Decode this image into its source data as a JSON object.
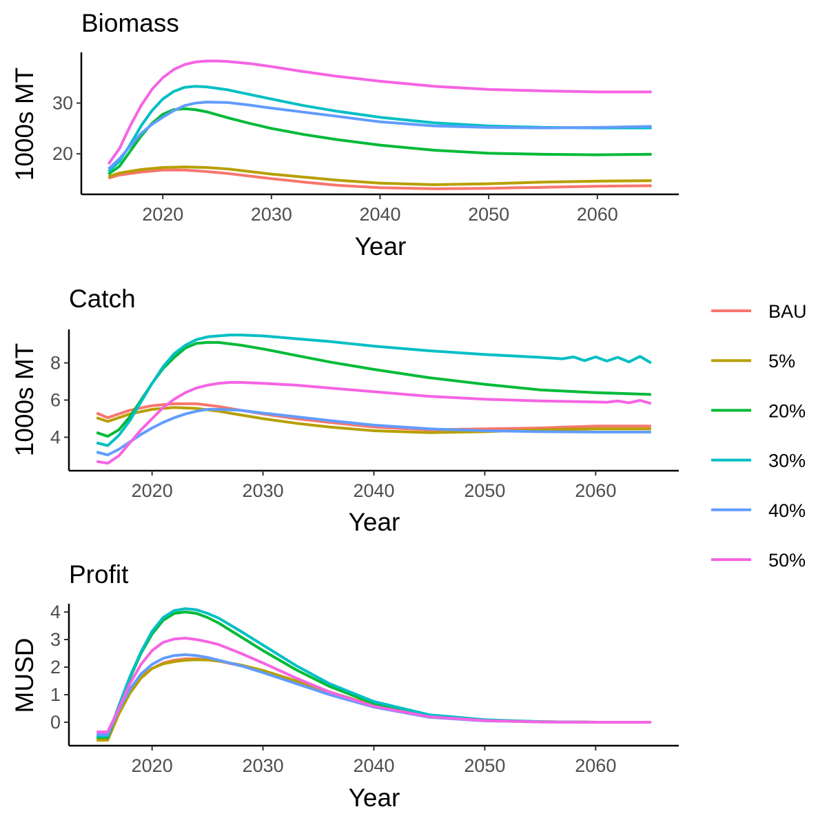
{
  "chart_data": [
    {
      "type": "line",
      "title": "Biomass",
      "xlabel": "Year",
      "ylabel": "1000s MT",
      "xlim": [
        2012.5,
        2067.5
      ],
      "ylim": [
        12.0,
        40.0
      ],
      "xticks": [
        2020,
        2030,
        2040,
        2050,
        2060
      ],
      "yticks": [
        20,
        30
      ],
      "grid": false,
      "series": [
        {
          "name": "BAU",
          "color": "#F8766D",
          "x": [
            2015,
            2016,
            2018,
            2020,
            2022,
            2024,
            2026,
            2028,
            2030,
            2033,
            2036,
            2040,
            2045,
            2050,
            2055,
            2060,
            2065
          ],
          "y": [
            15.2,
            15.8,
            16.4,
            16.8,
            16.8,
            16.5,
            16.1,
            15.6,
            15.1,
            14.4,
            13.8,
            13.3,
            13.1,
            13.2,
            13.4,
            13.6,
            13.7
          ]
        },
        {
          "name": "5%",
          "color": "#B79F00",
          "x": [
            2015,
            2016,
            2018,
            2020,
            2022,
            2024,
            2026,
            2028,
            2030,
            2033,
            2036,
            2040,
            2045,
            2050,
            2055,
            2060,
            2065
          ],
          "y": [
            15.5,
            16.2,
            16.9,
            17.3,
            17.4,
            17.3,
            17.0,
            16.5,
            16.0,
            15.4,
            14.8,
            14.2,
            13.9,
            14.1,
            14.4,
            14.6,
            14.7
          ]
        },
        {
          "name": "20%",
          "color": "#00BA38",
          "x": [
            2015,
            2016,
            2017,
            2018,
            2019,
            2020,
            2021,
            2022,
            2023,
            2024,
            2026,
            2028,
            2030,
            2033,
            2036,
            2040,
            2045,
            2050,
            2055,
            2060,
            2065
          ],
          "y": [
            16.0,
            17.5,
            20.5,
            23.5,
            26.0,
            27.8,
            28.7,
            28.9,
            28.7,
            28.3,
            27.1,
            26.0,
            25.0,
            23.8,
            22.8,
            21.7,
            20.7,
            20.1,
            19.9,
            19.8,
            19.9
          ]
        },
        {
          "name": "30%",
          "color": "#00BFC4",
          "x": [
            2015,
            2016,
            2017,
            2018,
            2019,
            2020,
            2021,
            2022,
            2023,
            2024,
            2026,
            2028,
            2030,
            2033,
            2036,
            2040,
            2045,
            2050,
            2055,
            2060,
            2065
          ],
          "y": [
            16.5,
            18.5,
            21.8,
            25.5,
            28.5,
            30.8,
            32.3,
            33.1,
            33.3,
            33.2,
            32.6,
            31.7,
            30.8,
            29.5,
            28.4,
            27.2,
            26.1,
            25.5,
            25.2,
            25.1,
            25.1
          ]
        },
        {
          "name": "40%",
          "color": "#619CFF",
          "x": [
            2015,
            2016,
            2017,
            2018,
            2019,
            2020,
            2021,
            2022,
            2023,
            2024,
            2026,
            2028,
            2030,
            2033,
            2036,
            2040,
            2045,
            2050,
            2055,
            2060,
            2065
          ],
          "y": [
            17.0,
            19.0,
            21.5,
            24.0,
            25.8,
            27.2,
            28.5,
            29.5,
            30.0,
            30.2,
            30.1,
            29.6,
            29.0,
            28.2,
            27.4,
            26.3,
            25.5,
            25.2,
            25.1,
            25.2,
            25.4
          ]
        },
        {
          "name": "50%",
          "color": "#F564E3",
          "x": [
            2015,
            2016,
            2017,
            2018,
            2019,
            2020,
            2021,
            2022,
            2023,
            2024,
            2025,
            2026,
            2028,
            2030,
            2033,
            2036,
            2040,
            2045,
            2050,
            2055,
            2060,
            2065
          ],
          "y": [
            18.0,
            21.0,
            25.5,
            29.5,
            32.7,
            35.0,
            36.6,
            37.6,
            38.1,
            38.3,
            38.3,
            38.2,
            37.8,
            37.2,
            36.2,
            35.3,
            34.3,
            33.3,
            32.7,
            32.4,
            32.2,
            32.2
          ]
        }
      ]
    },
    {
      "type": "line",
      "title": "Catch",
      "xlabel": "Year",
      "ylabel": "1000s MT",
      "xlim": [
        2012.5,
        2067.5
      ],
      "ylim": [
        2.2,
        9.8
      ],
      "xticks": [
        2020,
        2030,
        2040,
        2050,
        2060
      ],
      "yticks": [
        4,
        6,
        8
      ],
      "grid": false,
      "series": [
        {
          "name": "BAU",
          "color": "#F8766D",
          "x": [
            2015,
            2016,
            2017,
            2018,
            2020,
            2022,
            2024,
            2026,
            2028,
            2030,
            2033,
            2036,
            2040,
            2045,
            2050,
            2055,
            2060,
            2065
          ],
          "y": [
            5.3,
            5.05,
            5.25,
            5.45,
            5.7,
            5.8,
            5.8,
            5.65,
            5.45,
            5.25,
            5.0,
            4.8,
            4.55,
            4.4,
            4.45,
            4.5,
            4.6,
            4.6
          ]
        },
        {
          "name": "5%",
          "color": "#B79F00",
          "x": [
            2015,
            2016,
            2017,
            2018,
            2020,
            2022,
            2024,
            2026,
            2028,
            2030,
            2033,
            2036,
            2040,
            2045,
            2050,
            2055,
            2060,
            2065
          ],
          "y": [
            5.05,
            4.85,
            5.05,
            5.25,
            5.5,
            5.6,
            5.55,
            5.4,
            5.2,
            5.0,
            4.75,
            4.55,
            4.35,
            4.25,
            4.3,
            4.4,
            4.45,
            4.45
          ]
        },
        {
          "name": "20%",
          "color": "#00BA38",
          "x": [
            2015,
            2016,
            2017,
            2018,
            2019,
            2020,
            2021,
            2022,
            2023,
            2024,
            2025,
            2026,
            2028,
            2030,
            2033,
            2036,
            2040,
            2045,
            2050,
            2055,
            2060,
            2065
          ],
          "y": [
            4.25,
            4.05,
            4.4,
            5.1,
            6.0,
            6.9,
            7.7,
            8.3,
            8.8,
            9.05,
            9.1,
            9.1,
            8.95,
            8.75,
            8.4,
            8.05,
            7.65,
            7.2,
            6.85,
            6.55,
            6.4,
            6.3
          ]
        },
        {
          "name": "30%",
          "color": "#00BFC4",
          "x": [
            2015,
            2016,
            2017,
            2018,
            2019,
            2020,
            2021,
            2022,
            2023,
            2024,
            2025,
            2026,
            2027,
            2028,
            2030,
            2033,
            2036,
            2040,
            2045,
            2050,
            2055,
            2057,
            2058,
            2059,
            2060,
            2061,
            2062,
            2063,
            2064,
            2065
          ],
          "y": [
            3.7,
            3.55,
            4.1,
            4.9,
            5.9,
            6.9,
            7.8,
            8.5,
            8.95,
            9.25,
            9.4,
            9.45,
            9.5,
            9.5,
            9.45,
            9.3,
            9.15,
            8.9,
            8.65,
            8.45,
            8.3,
            8.22,
            8.32,
            8.12,
            8.32,
            8.1,
            8.3,
            8.05,
            8.35,
            8.0
          ]
        },
        {
          "name": "40%",
          "color": "#619CFF",
          "x": [
            2015,
            2016,
            2017,
            2018,
            2019,
            2020,
            2021,
            2022,
            2023,
            2024,
            2025,
            2026,
            2028,
            2030,
            2033,
            2036,
            2040,
            2045,
            2050,
            2055,
            2060,
            2065
          ],
          "y": [
            3.2,
            3.05,
            3.35,
            3.75,
            4.15,
            4.5,
            4.8,
            5.05,
            5.25,
            5.4,
            5.5,
            5.5,
            5.45,
            5.3,
            5.1,
            4.9,
            4.65,
            4.45,
            4.35,
            4.3,
            4.28,
            4.28
          ]
        },
        {
          "name": "50%",
          "color": "#F564E3",
          "x": [
            2015,
            2016,
            2017,
            2018,
            2019,
            2020,
            2021,
            2022,
            2023,
            2024,
            2025,
            2026,
            2027,
            2028,
            2030,
            2033,
            2036,
            2040,
            2045,
            2050,
            2055,
            2060,
            2061,
            2062,
            2063,
            2064,
            2065
          ],
          "y": [
            2.7,
            2.6,
            3.0,
            3.7,
            4.4,
            5.0,
            5.6,
            6.05,
            6.4,
            6.65,
            6.8,
            6.9,
            6.95,
            6.95,
            6.9,
            6.8,
            6.65,
            6.45,
            6.2,
            6.05,
            5.95,
            5.9,
            5.88,
            5.95,
            5.85,
            5.98,
            5.82
          ]
        }
      ]
    },
    {
      "type": "line",
      "title": "Profit",
      "xlabel": "Year",
      "ylabel": "MUSD",
      "xlim": [
        2012.5,
        2067.5
      ],
      "ylim": [
        -0.85,
        4.3
      ],
      "xticks": [
        2020,
        2030,
        2040,
        2050,
        2060
      ],
      "yticks": [
        0,
        1,
        2,
        3,
        4
      ],
      "grid": false,
      "series": [
        {
          "name": "BAU",
          "color": "#F8766D",
          "x": [
            2015,
            2016,
            2017,
            2018,
            2019,
            2020,
            2021,
            2022,
            2023,
            2024,
            2025,
            2026,
            2028,
            2030,
            2033,
            2036,
            2040,
            2045,
            2050,
            2055,
            2060,
            2065
          ],
          "y": [
            -0.6,
            -0.6,
            0.35,
            1.1,
            1.65,
            1.95,
            2.15,
            2.25,
            2.3,
            2.3,
            2.27,
            2.22,
            2.05,
            1.85,
            1.45,
            1.05,
            0.6,
            0.2,
            0.06,
            0.02,
            0.0,
            0.0
          ]
        },
        {
          "name": "5%",
          "color": "#B79F00",
          "x": [
            2015,
            2016,
            2017,
            2018,
            2019,
            2020,
            2021,
            2022,
            2023,
            2024,
            2025,
            2026,
            2028,
            2030,
            2033,
            2036,
            2040,
            2045,
            2050,
            2055,
            2060,
            2065
          ],
          "y": [
            -0.65,
            -0.65,
            0.3,
            1.05,
            1.6,
            1.95,
            2.12,
            2.2,
            2.25,
            2.27,
            2.26,
            2.22,
            2.08,
            1.88,
            1.5,
            1.1,
            0.62,
            0.22,
            0.07,
            0.02,
            0.0,
            0.0
          ]
        },
        {
          "name": "20%",
          "color": "#00BA38",
          "x": [
            2015,
            2016,
            2017,
            2018,
            2019,
            2020,
            2021,
            2022,
            2023,
            2024,
            2025,
            2026,
            2028,
            2030,
            2033,
            2036,
            2040,
            2045,
            2050,
            2055,
            2060,
            2065
          ],
          "y": [
            -0.55,
            -0.55,
            0.55,
            1.6,
            2.5,
            3.2,
            3.7,
            3.95,
            4.0,
            3.95,
            3.8,
            3.6,
            3.1,
            2.6,
            1.9,
            1.3,
            0.68,
            0.24,
            0.08,
            0.02,
            0.0,
            0.0
          ]
        },
        {
          "name": "30%",
          "color": "#00BFC4",
          "x": [
            2015,
            2016,
            2017,
            2018,
            2019,
            2020,
            2021,
            2022,
            2023,
            2024,
            2025,
            2026,
            2028,
            2030,
            2033,
            2036,
            2040,
            2045,
            2050,
            2055,
            2060,
            2065
          ],
          "y": [
            -0.5,
            -0.5,
            0.6,
            1.65,
            2.55,
            3.3,
            3.8,
            4.05,
            4.12,
            4.08,
            3.95,
            3.78,
            3.3,
            2.8,
            2.05,
            1.4,
            0.75,
            0.27,
            0.09,
            0.02,
            0.0,
            0.0
          ]
        },
        {
          "name": "40%",
          "color": "#619CFF",
          "x": [
            2015,
            2016,
            2017,
            2018,
            2019,
            2020,
            2021,
            2022,
            2023,
            2024,
            2025,
            2026,
            2028,
            2030,
            2033,
            2036,
            2040,
            2045,
            2050,
            2055,
            2060,
            2065
          ],
          "y": [
            -0.45,
            -0.45,
            0.45,
            1.2,
            1.75,
            2.1,
            2.32,
            2.42,
            2.45,
            2.42,
            2.35,
            2.25,
            2.05,
            1.8,
            1.4,
            1.0,
            0.55,
            0.18,
            0.05,
            0.01,
            0.0,
            0.0
          ]
        },
        {
          "name": "50%",
          "color": "#F564E3",
          "x": [
            2015,
            2016,
            2017,
            2018,
            2019,
            2020,
            2021,
            2022,
            2023,
            2024,
            2025,
            2026,
            2028,
            2030,
            2033,
            2036,
            2040,
            2045,
            2050,
            2055,
            2060,
            2065
          ],
          "y": [
            -0.35,
            -0.35,
            0.5,
            1.4,
            2.1,
            2.6,
            2.9,
            3.02,
            3.05,
            3.0,
            2.92,
            2.82,
            2.5,
            2.15,
            1.6,
            1.1,
            0.58,
            0.2,
            0.06,
            0.01,
            0.0,
            0.0
          ]
        }
      ]
    }
  ],
  "legend": {
    "placement": "right",
    "entries": [
      {
        "label": "BAU",
        "color": "#F8766D"
      },
      {
        "label": "5%",
        "color": "#B79F00"
      },
      {
        "label": "20%",
        "color": "#00BA38"
      },
      {
        "label": "30%",
        "color": "#00BFC4"
      },
      {
        "label": "40%",
        "color": "#619CFF"
      },
      {
        "label": "50%",
        "color": "#F564E3"
      }
    ]
  }
}
